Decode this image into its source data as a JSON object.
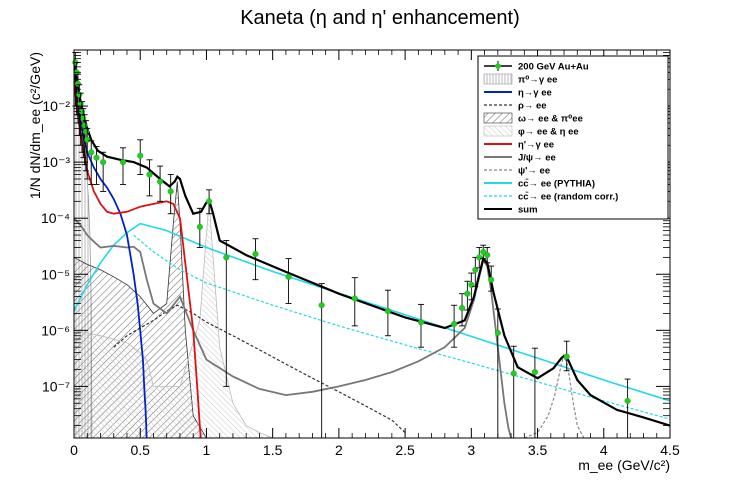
{
  "chart_data": {
    "type": "line",
    "title": "Kaneta (η and η' enhancement)",
    "xlabel": "m_ee (GeV/c²)",
    "ylabel": "1/N dN/dm_ee (c²/GeV)",
    "xlim": [
      0,
      4.5
    ],
    "ylim": [
      1.2e-08,
      0.1
    ],
    "y_scale": "log",
    "x_ticks": [
      0,
      0.5,
      1,
      1.5,
      2,
      2.5,
      3,
      3.5,
      4,
      4.5
    ],
    "x_tick_labels": [
      "0",
      "0.5",
      "1",
      "1.5",
      "2",
      "2.5",
      "3",
      "3.5",
      "4",
      "4.5"
    ],
    "y_ticks": [
      1e-07,
      1e-06,
      1e-05,
      0.0001,
      0.001,
      0.01
    ],
    "y_tick_labels": [
      "10⁻⁷",
      "10⁻⁶",
      "10⁻⁵",
      "10⁻⁴",
      "10⁻³",
      "10⁻²"
    ],
    "legend_position": "top-right",
    "legend": [
      {
        "label": "200 GeV Au+Au",
        "style": "data",
        "color": "#22cc22"
      },
      {
        "label": "π⁰→γ ee",
        "style": "hatch-vertical",
        "color": "#9a9a9a"
      },
      {
        "label": "η→γ ee",
        "style": "line",
        "color": "#0022cc"
      },
      {
        "label": "ρ→ ee",
        "style": "dashed",
        "color": "#333333"
      },
      {
        "label": "ω→ ee & π⁰ee",
        "style": "hatch-diagonal",
        "color": "#333333"
      },
      {
        "label": "φ→ ee & η ee",
        "style": "hatch-light",
        "color": "#bbbbbb"
      },
      {
        "label": "η'→γ ee",
        "style": "line",
        "color": "#dd1111"
      },
      {
        "label": "J/ψ→ ee",
        "style": "line",
        "color": "#777777"
      },
      {
        "label": "ψ'→ ee",
        "style": "dashed",
        "color": "#888888"
      },
      {
        "label": "cc̄→ ee (PYTHIA)",
        "style": "line",
        "color": "#22d8e8"
      },
      {
        "label": "cc̄→ ee (random corr.)",
        "style": "dashed",
        "color": "#22d8e8"
      },
      {
        "label": "sum",
        "style": "line",
        "color": "#000000"
      }
    ],
    "series": [
      {
        "name": "sum",
        "color": "#000000",
        "x": [
          0.0,
          0.02,
          0.05,
          0.08,
          0.1,
          0.13,
          0.18,
          0.25,
          0.35,
          0.45,
          0.55,
          0.65,
          0.72,
          0.76,
          0.78,
          0.8,
          0.84,
          0.9,
          0.96,
          1.0,
          1.02,
          1.05,
          1.1,
          1.3,
          1.6,
          2.0,
          2.5,
          2.8,
          2.95,
          3.02,
          3.06,
          3.09,
          3.12,
          3.17,
          3.25,
          3.35,
          3.5,
          3.62,
          3.68,
          3.7,
          3.73,
          3.8,
          3.9,
          4.1,
          4.3,
          4.5
        ],
        "y": [
          0.06,
          0.03,
          0.012,
          0.006,
          0.004,
          0.0025,
          0.0016,
          0.00125,
          0.0011,
          0.001,
          0.0008,
          0.0005,
          0.00037,
          0.00045,
          0.00055,
          0.0005,
          0.00025,
          0.00012,
          0.00013,
          0.00019,
          0.00021,
          0.00012,
          4e-05,
          2.2e-05,
          1.1e-05,
          4.5e-06,
          1.7e-06,
          1.1e-06,
          1.5e-06,
          4e-06,
          1e-05,
          1.9e-05,
          1.6e-05,
          4.5e-06,
          8e-07,
          2.2e-07,
          1.4e-07,
          2.1e-07,
          3.2e-07,
          3.5e-07,
          3e-07,
          1.3e-07,
          7e-08,
          3.8e-08,
          2.8e-08,
          2e-08
        ]
      },
      {
        "name": "η→γ ee",
        "color": "#0022cc",
        "x": [
          0.0,
          0.02,
          0.05,
          0.1,
          0.15,
          0.2,
          0.25,
          0.3,
          0.35,
          0.4,
          0.45,
          0.48,
          0.5,
          0.52,
          0.53,
          0.54,
          0.545,
          0.548
        ],
        "y": [
          0.04,
          0.015,
          0.005,
          0.0015,
          0.0008,
          0.0005,
          0.00035,
          0.00022,
          0.00012,
          5e-05,
          1e-05,
          3e-06,
          1e-06,
          3e-07,
          1e-07,
          4e-08,
          2e-08,
          1.2e-08
        ]
      },
      {
        "name": "η'→γ ee",
        "color": "#dd1111",
        "x": [
          0.0,
          0.02,
          0.05,
          0.1,
          0.15,
          0.2,
          0.25,
          0.3,
          0.4,
          0.5,
          0.6,
          0.7,
          0.75,
          0.8,
          0.85,
          0.9,
          0.93,
          0.95,
          0.957
        ],
        "y": [
          0.03,
          0.01,
          0.003,
          0.0007,
          0.0003,
          0.00018,
          0.00013,
          0.00012,
          0.00013,
          0.00016,
          0.00018,
          0.0002,
          0.00018,
          0.0001,
          1e-05,
          1e-06,
          1e-07,
          2e-08,
          1.2e-08
        ]
      },
      {
        "name": "J/ψ→ ee",
        "color": "#777777",
        "x": [
          0.0,
          0.05,
          0.1,
          0.15,
          0.2,
          0.3,
          0.4,
          0.45,
          0.5,
          0.55,
          0.6,
          0.7,
          0.8,
          0.9,
          1.0,
          1.2,
          1.4,
          1.6,
          1.8,
          2.0,
          2.2,
          2.4,
          2.6,
          2.8,
          2.95,
          3.02,
          3.06,
          3.09,
          3.12,
          3.15,
          3.2,
          3.25,
          3.28,
          3.3
        ],
        "y": [
          0.0001,
          7.5e-05,
          5e-05,
          3.8e-05,
          3e-05,
          3.2e-05,
          3e-05,
          3.1e-05,
          2.5e-05,
          8e-06,
          3e-06,
          2e-06,
          4e-06,
          1e-06,
          3e-07,
          1.5e-07,
          9e-08,
          7e-08,
          8e-08,
          1e-07,
          1.3e-07,
          1.8e-07,
          2.8e-07,
          5e-07,
          1.1e-06,
          3.5e-06,
          9e-06,
          1.8e-05,
          1.4e-05,
          5e-06,
          5e-07,
          5e-08,
          1.8e-08,
          1.2e-08
        ]
      },
      {
        "name": "cc̄→ ee (PYTHIA)",
        "color": "#22d8e8",
        "x": [
          0.0,
          0.1,
          0.2,
          0.3,
          0.4,
          0.5,
          0.7,
          1.0,
          1.5,
          2.0,
          2.5,
          3.0,
          3.5,
          4.0,
          4.5
        ],
        "y": [
          2.2e-06,
          6.5e-06,
          1.6e-05,
          3.3e-05,
          5.5e-05,
          8e-05,
          6e-05,
          3e-05,
          1.12e-05,
          4.6e-06,
          1.9e-06,
          7.8e-07,
          3.2e-07,
          1.3e-07,
          5.5e-08
        ]
      },
      {
        "name": "cc̄→ ee (random corr.)",
        "color": "#22d8e8",
        "x": [
          0.45,
          0.6,
          0.8,
          1.0,
          1.5,
          2.0,
          2.5,
          3.0,
          3.5,
          4.0,
          4.5
        ],
        "y": [
          5e-05,
          2.5e-05,
          1.2e-05,
          7e-06,
          2.8e-06,
          1.2e-06,
          5.5e-07,
          2.6e-07,
          1.2e-07,
          5.5e-08,
          2.6e-08
        ]
      },
      {
        "name": "ρ→ ee",
        "color": "#333333",
        "x": [
          0.3,
          0.4,
          0.5,
          0.6,
          0.7,
          0.78,
          0.9,
          1.0,
          1.2,
          1.4,
          1.6,
          1.8,
          2.0,
          2.2,
          2.4,
          2.5
        ],
        "y": [
          5e-07,
          8e-07,
          1.1e-06,
          1.5e-06,
          2.2e-06,
          2.8e-06,
          2e-06,
          1.4e-06,
          8e-07,
          4.5e-07,
          2.5e-07,
          1.4e-07,
          8e-08,
          4.5e-08,
          2.5e-08,
          1.5e-08
        ]
      },
      {
        "name": "ψ'→ ee",
        "color": "#888888",
        "x": [
          3.4,
          3.5,
          3.58,
          3.63,
          3.66,
          3.68,
          3.69,
          3.7,
          3.72,
          3.74,
          3.77,
          3.8,
          3.85
        ],
        "y": [
          1.2e-08,
          1.5e-08,
          3e-08,
          7e-08,
          1.5e-07,
          2.5e-07,
          3e-07,
          3.2e-07,
          2.8e-07,
          1.5e-07,
          5e-08,
          2e-08,
          1.2e-08
        ]
      }
    ],
    "hatched_contributions": [
      {
        "name": "π⁰→γ ee",
        "pattern": "vertical",
        "x": [
          0.0,
          0.02,
          0.05,
          0.08,
          0.1,
          0.11,
          0.12,
          0.13,
          0.135
        ],
        "y": [
          0.05,
          0.02,
          0.005,
          0.0015,
          0.0005,
          0.0002,
          5e-05,
          3e-06,
          1.2e-08
        ]
      },
      {
        "name": "ω→ ee & π⁰ee",
        "pattern": "diagonal",
        "x": [
          0.0,
          0.1,
          0.2,
          0.3,
          0.4,
          0.5,
          0.6,
          0.7,
          0.75,
          0.78,
          0.8,
          0.84,
          0.9,
          1.0
        ],
        "y": [
          2e-05,
          1.5e-05,
          1.2e-05,
          9e-06,
          6.5e-06,
          4e-06,
          2e-06,
          3e-06,
          8e-05,
          0.00045,
          8e-05,
          1e-06,
          3e-08,
          1.2e-08
        ]
      },
      {
        "name": "φ→ ee & η ee",
        "pattern": "light",
        "x": [
          0.0,
          0.2,
          0.4,
          0.5,
          0.55,
          0.6,
          0.8,
          0.95,
          1.0,
          1.02,
          1.05,
          1.1,
          1.2,
          1.3,
          1.4,
          1.5
        ],
        "y": [
          1e-06,
          8e-07,
          6e-07,
          4e-07,
          3e-07,
          1e-07,
          1e-07,
          1.5e-06,
          5e-05,
          0.0002,
          2e-05,
          5e-07,
          5e-08,
          2e-08,
          1.5e-08,
          1.2e-08
        ]
      }
    ],
    "data_points": {
      "name": "200 GeV Au+Au",
      "x": [
        0.01,
        0.02,
        0.03,
        0.04,
        0.05,
        0.06,
        0.07,
        0.08,
        0.09,
        0.1,
        0.13,
        0.17,
        0.22,
        0.37,
        0.5,
        0.57,
        0.65,
        0.73,
        0.95,
        1.02,
        1.15,
        1.37,
        1.62,
        1.87,
        2.12,
        2.37,
        2.62,
        2.87,
        2.93,
        2.97,
        3.0,
        3.03,
        3.06,
        3.09,
        3.12,
        3.15,
        3.2,
        3.32,
        3.48,
        3.72,
        4.18
      ],
      "y": [
        0.06,
        0.04,
        0.025,
        0.016,
        0.011,
        0.008,
        0.006,
        0.0045,
        0.0035,
        0.0025,
        0.0015,
        0.0012,
        0.001,
        0.001,
        0.0013,
        0.0006,
        0.00045,
        0.0003,
        7e-05,
        0.0002,
        2e-05,
        2.3e-05,
        9e-06,
        2.8e-06,
        3.7e-06,
        2.2e-06,
        1.4e-06,
        1.3e-06,
        2.5e-06,
        4.5e-06,
        6.5e-06,
        1.2e-05,
        2e-05,
        2.5e-05,
        2.2e-05,
        8e-06,
        9e-07,
        1.7e-07,
        1.8e-07,
        3.4e-07,
        5.5e-08
      ],
      "err_low": [
        0.05,
        0.033,
        0.02,
        0.013,
        0.009,
        0.0065,
        0.0048,
        0.0036,
        0.0028,
        0.002,
        0.0011,
        0.0008,
        0.0007,
        0.0006,
        0.0007,
        0.00035,
        0.00025,
        0.00018,
        4e-05,
        8e-05,
        1.99e-05,
        1.5e-05,
        6e-06,
        2.8e-06,
        2.5e-06,
        1.4e-06,
        9e-07,
        8e-07,
        1.3e-06,
        2.2e-06,
        3e-06,
        6e-06,
        7e-06,
        6e-06,
        6e-06,
        3e-06,
        9e-07,
        1.7e-07,
        1.8e-07,
        1.5e-07,
        4.3e-08
      ],
      "err_high": [
        0.03,
        0.02,
        0.012,
        0.008,
        0.006,
        0.004,
        0.003,
        0.0025,
        0.002,
        0.0015,
        0.0009,
        0.0007,
        0.0005,
        0.0008,
        0.0012,
        0.0005,
        0.0004,
        0.0003,
        8e-05,
        0.00012,
        2e-05,
        2e-05,
        1e-05,
        4e-06,
        5e-06,
        3e-06,
        1.5e-06,
        1.5e-06,
        2e-06,
        3e-06,
        4e-06,
        8e-06,
        1e-05,
        8e-06,
        8e-06,
        6e-06,
        1.5e-06,
        3.5e-07,
        3e-07,
        3e-07,
        8e-08
      ]
    }
  }
}
